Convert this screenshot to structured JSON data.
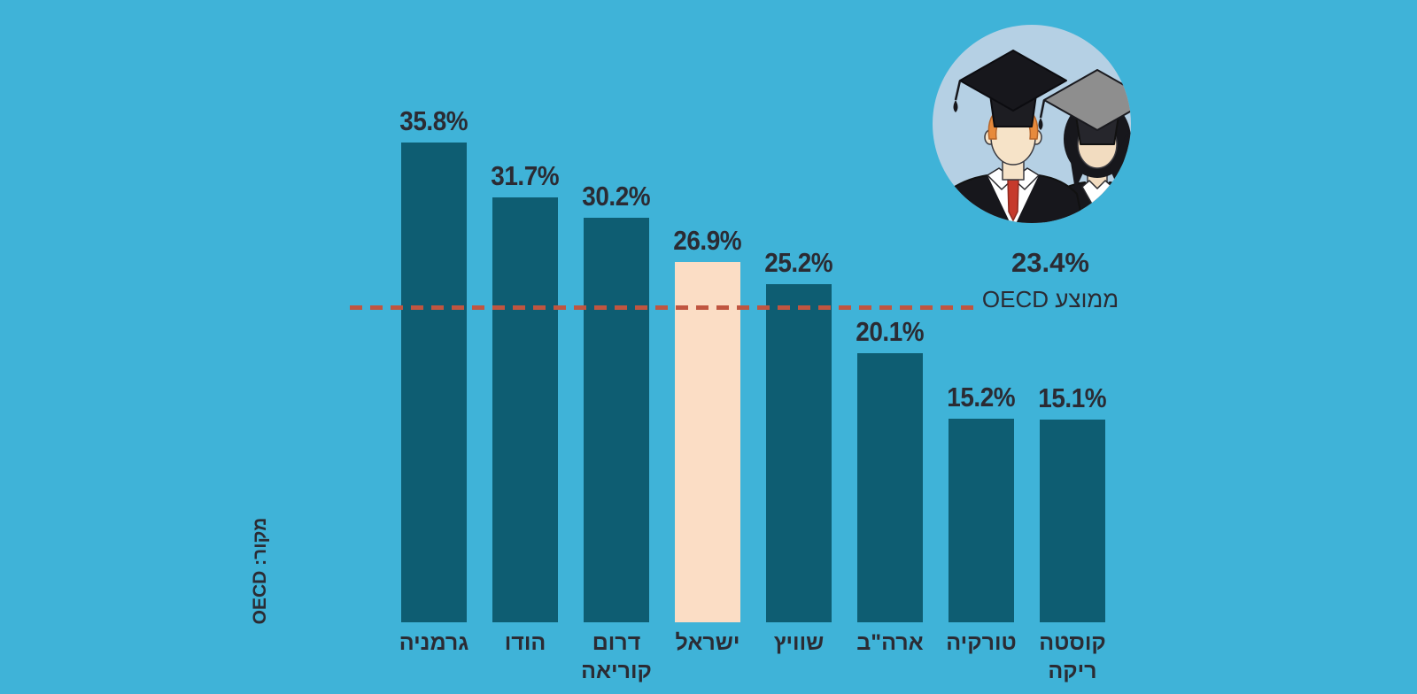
{
  "page": {
    "background_color": "#3fb3d8"
  },
  "icons": {
    "header_illustration": "graduates-icon"
  },
  "chart_data": {
    "type": "bar",
    "title": "",
    "categories": [
      "גרמניה",
      "הודו",
      "דרום קוריאה",
      "ישראל",
      "שוויץ",
      "ארה\"ב",
      "טורקיה",
      "קוסטה ריקה"
    ],
    "values": [
      35.8,
      31.7,
      30.2,
      26.9,
      25.2,
      20.1,
      15.2,
      15.1
    ],
    "value_labels": [
      "35.8%",
      "31.7%",
      "30.2%",
      "26.9%",
      "25.2%",
      "20.1%",
      "15.2%",
      "15.1%"
    ],
    "highlight_index": 3,
    "highlight_category": "ישראל",
    "unit": "%",
    "ylim": [
      0,
      40
    ],
    "grid": false,
    "legend": false,
    "reference_line": {
      "value": 23.4,
      "value_label": "23.4%",
      "text": "ממוצע OECD",
      "position": "right-of-line"
    },
    "source_label": "מקור: OECD",
    "colors": {
      "background": "#3fb3d8",
      "bar": "#0e5d72",
      "highlight_bar": "#fbddc5",
      "reference_line": "#c05540",
      "text": "#2b2b33",
      "icon_circle": "#b5d0e4"
    }
  }
}
